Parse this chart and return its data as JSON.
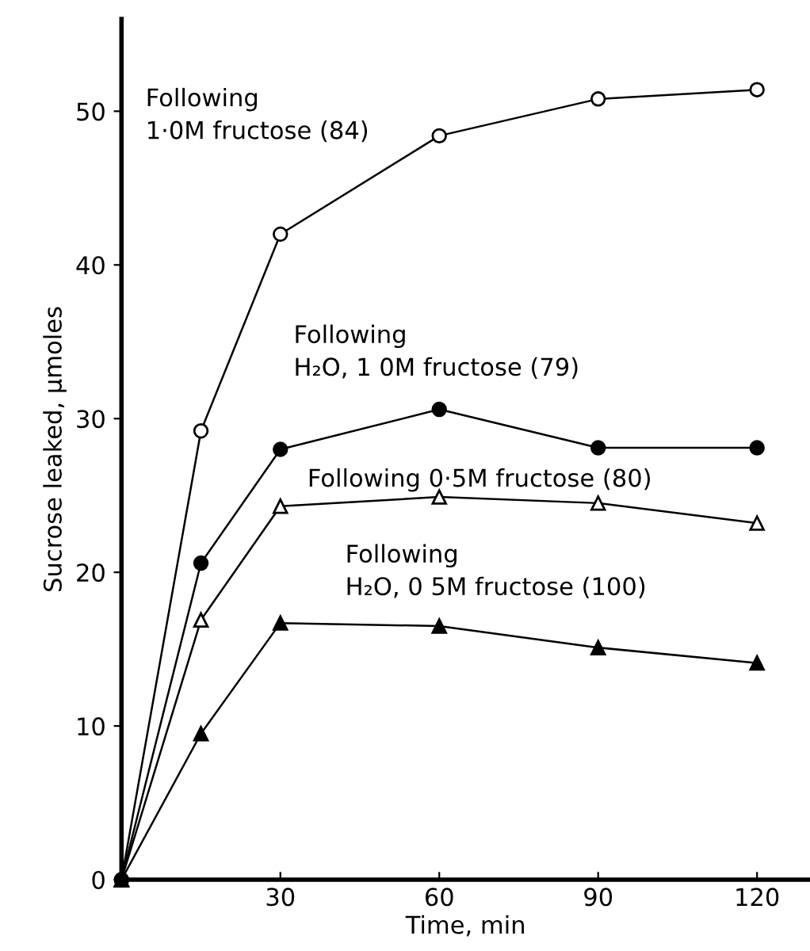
{
  "chart_data": {
    "type": "line",
    "xlabel": "Time, min",
    "ylabel": "Sucrose leaked, μmoles",
    "x": [
      0,
      15,
      30,
      60,
      90,
      120
    ],
    "series": [
      {
        "name": "Following\n1·0M fructose (84)",
        "color": "#000000",
        "marker": "circle",
        "values": [
          0,
          29.2,
          42,
          48.4,
          50.8,
          51.4
        ]
      },
      {
        "name": "Following\nH₂O, 1 0M fructose (79)",
        "color": "#000000",
        "marker": "circle",
        "values": [
          0,
          20.6,
          28,
          30.6,
          28.1,
          28.1
        ]
      },
      {
        "name": "Following 0·5M fructose (80)",
        "color": "#000000",
        "marker": "triangle",
        "values": [
          0,
          16.9,
          24.3,
          24.9,
          24.5,
          23.2
        ]
      },
      {
        "name": "Following\nH₂O, 0 5M fructose (100)",
        "color": "#000000",
        "marker": "triangle",
        "values": [
          0,
          9.5,
          16.7,
          16.5,
          15.1,
          14.1
        ]
      }
    ],
    "xlim": [
      0,
      130
    ],
    "ylim": [
      0,
      56
    ],
    "xticks": [
      30,
      60,
      90,
      120
    ],
    "yticks": [
      0,
      10,
      20,
      30,
      40,
      50
    ],
    "grid": false,
    "legend": false,
    "line_style": "solid"
  }
}
